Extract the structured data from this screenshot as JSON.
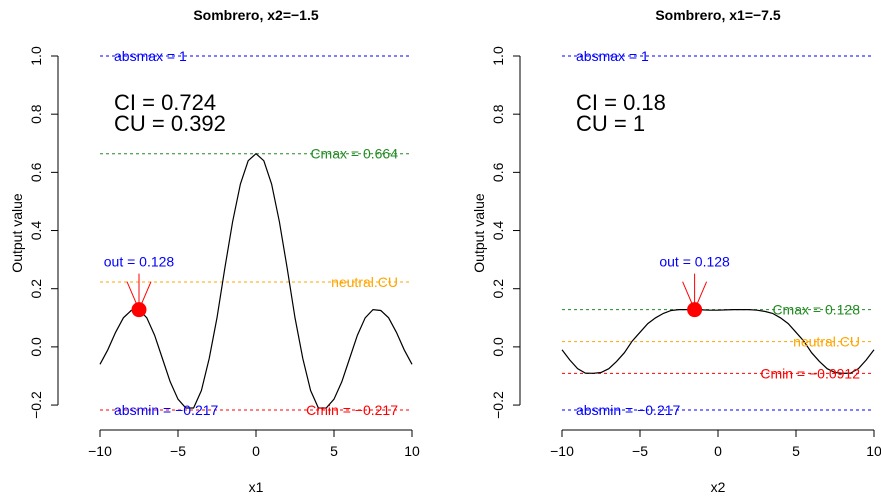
{
  "chart_data": [
    {
      "type": "line",
      "title": "Sombrero, x2=−1.5",
      "xlabel": "x1",
      "ylabel": "Output value",
      "xlim": [
        -10,
        10
      ],
      "ylim": [
        -0.217,
        1.0
      ],
      "xticks": [
        "−10",
        "−5",
        "0",
        "5",
        "10"
      ],
      "yticks": [
        "−0.2",
        "0.0",
        "0.2",
        "0.4",
        "0.6",
        "0.8",
        "1.0"
      ],
      "series": [
        {
          "x": [
            -10,
            -9.5,
            -9,
            -8.5,
            -8,
            -7.5,
            -7,
            -6.5,
            -6,
            -5.5,
            -5,
            -4.5,
            -4,
            -3.5,
            -3,
            -2.5,
            -2,
            -1.5,
            -1,
            -0.5,
            0,
            0.5,
            1,
            1.5,
            2,
            2.5,
            3,
            3.5,
            4,
            4.5,
            5,
            5.5,
            6,
            6.5,
            7,
            7.5,
            8,
            8.5,
            9,
            9.5,
            10
          ],
          "y": [
            -0.06,
            -0.01,
            0.05,
            0.1,
            0.125,
            0.128,
            0.1,
            0.04,
            -0.04,
            -0.12,
            -0.18,
            -0.21,
            -0.21,
            -0.15,
            -0.04,
            0.1,
            0.27,
            0.43,
            0.56,
            0.64,
            0.664,
            0.64,
            0.56,
            0.43,
            0.27,
            0.1,
            -0.04,
            -0.15,
            -0.21,
            -0.21,
            -0.18,
            -0.12,
            -0.04,
            0.04,
            0.1,
            0.128,
            0.125,
            0.1,
            0.05,
            -0.01,
            -0.06
          ]
        }
      ],
      "point": {
        "x": -7.5,
        "y": 0.128,
        "label": "out = 0.128"
      },
      "hlines": [
        {
          "y": 1.0,
          "label": "absmax = 1",
          "color": "#0000ff",
          "label_pos": "left"
        },
        {
          "y": 0.664,
          "label": "Cmax =  0.664",
          "color": "#228b22",
          "label_pos": "right"
        },
        {
          "y": 0.223,
          "label": "neutral.CU",
          "color": "#ffa500",
          "label_pos": "right"
        },
        {
          "y": -0.217,
          "label": "absmin = −0.217",
          "color": "#0000ff",
          "label_pos": "left"
        },
        {
          "y": -0.217,
          "label": "Cmin =  −0.217",
          "color": "#ff0000",
          "label_pos": "right"
        }
      ],
      "ci_text": "CI = 0.724",
      "cu_text": "CU = 0.392"
    },
    {
      "type": "line",
      "title": "Sombrero, x1=−7.5",
      "xlabel": "x2",
      "ylabel": "Output value",
      "xlim": [
        -10,
        10
      ],
      "ylim": [
        -0.217,
        1.0
      ],
      "xticks": [
        "−10",
        "−5",
        "0",
        "5",
        "10"
      ],
      "yticks": [
        "−0.2",
        "0.0",
        "0.2",
        "0.4",
        "0.6",
        "0.8",
        "1.0"
      ],
      "series": [
        {
          "x": [
            -10,
            -9.5,
            -9,
            -8.5,
            -8,
            -7.5,
            -7,
            -6.5,
            -6,
            -5.5,
            -5,
            -4.5,
            -4,
            -3.5,
            -3,
            -2.5,
            -2,
            -1.5,
            -1,
            -0.5,
            0,
            0.5,
            1,
            1.5,
            2,
            2.5,
            3,
            3.5,
            4,
            4.5,
            5,
            5.5,
            6,
            6.5,
            7,
            7.5,
            8,
            8.5,
            9,
            9.5,
            10
          ],
          "y": [
            -0.01,
            -0.045,
            -0.075,
            -0.09,
            -0.091,
            -0.088,
            -0.075,
            -0.05,
            -0.02,
            0.02,
            0.05,
            0.08,
            0.1,
            0.115,
            0.125,
            0.128,
            0.128,
            0.128,
            0.127,
            0.126,
            0.126,
            0.127,
            0.128,
            0.128,
            0.128,
            0.126,
            0.122,
            0.115,
            0.1,
            0.08,
            0.05,
            0.02,
            -0.02,
            -0.05,
            -0.075,
            -0.088,
            -0.091,
            -0.09,
            -0.075,
            -0.045,
            -0.01
          ]
        }
      ],
      "point": {
        "x": -1.5,
        "y": 0.128,
        "label": "out = 0.128"
      },
      "hlines": [
        {
          "y": 1.0,
          "label": "absmax = 1",
          "color": "#0000ff",
          "label_pos": "left"
        },
        {
          "y": 0.128,
          "label": "Cmax =  0.128",
          "color": "#228b22",
          "label_pos": "right"
        },
        {
          "y": 0.018,
          "label": "neutral.CU",
          "color": "#ffa500",
          "label_pos": "right"
        },
        {
          "y": -0.0912,
          "label": "Cmin =  −0.0912",
          "color": "#ff0000",
          "label_pos": "right"
        },
        {
          "y": -0.217,
          "label": "absmin = −0.217",
          "color": "#0000ff",
          "label_pos": "left"
        }
      ],
      "ci_text": "CI = 0.18",
      "cu_text": "CU = 1"
    }
  ]
}
